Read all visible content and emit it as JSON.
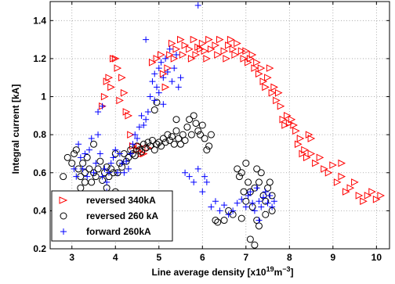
{
  "chart_data": {
    "type": "scatter",
    "xlabel_main": "Line average density [x10",
    "xlabel_exp": "19",
    "xlabel_unit_main": "m",
    "xlabel_unit_exp": "−3",
    "xlabel_close": "]",
    "ylabel": "Integral current [kA]",
    "xlim": [
      2.5,
      10.3
    ],
    "ylim": [
      0.2,
      1.5
    ],
    "xticks": [
      3,
      4,
      5,
      6,
      7,
      8,
      9,
      10
    ],
    "yticks": [
      0.2,
      0.4,
      0.6,
      0.8,
      1,
      1.2,
      1.4
    ],
    "grid": true,
    "legend_position": "bottom-left",
    "series": [
      {
        "name": "reversed 340kA",
        "marker": "triangle-right",
        "color": "#ff0000",
        "points": [
          [
            3.7,
            0.95
          ],
          [
            3.75,
            1.0
          ],
          [
            3.8,
            1.08
          ],
          [
            3.85,
            1.1
          ],
          [
            3.9,
            1.05
          ],
          [
            3.95,
            1.2
          ],
          [
            4.0,
            1.2
          ],
          [
            4.05,
            1.15
          ],
          [
            4.1,
            0.98
          ],
          [
            4.15,
            1.1
          ],
          [
            4.2,
            1.02
          ],
          [
            4.25,
            0.92
          ],
          [
            4.3,
            0.9
          ],
          [
            4.35,
            0.8
          ],
          [
            4.4,
            0.74
          ],
          [
            4.5,
            0.72
          ],
          [
            4.55,
            0.74
          ],
          [
            4.6,
            0.7
          ],
          [
            4.65,
            0.7
          ],
          [
            4.75,
            0.73
          ],
          [
            4.85,
            1.18
          ],
          [
            4.95,
            1.2
          ],
          [
            5.05,
            1.22
          ],
          [
            5.1,
            1.12
          ],
          [
            5.15,
            1.05
          ],
          [
            5.2,
            1.15
          ],
          [
            5.25,
            1.22
          ],
          [
            5.3,
            1.28
          ],
          [
            5.35,
            1.2
          ],
          [
            5.4,
            1.25
          ],
          [
            5.5,
            1.3
          ],
          [
            5.55,
            1.22
          ],
          [
            5.6,
            1.27
          ],
          [
            5.7,
            1.25
          ],
          [
            5.75,
            1.2
          ],
          [
            5.8,
            1.3
          ],
          [
            5.85,
            1.22
          ],
          [
            5.9,
            1.26
          ],
          [
            5.95,
            1.25
          ],
          [
            6.0,
            1.28
          ],
          [
            6.05,
            1.24
          ],
          [
            6.1,
            1.2
          ],
          [
            6.15,
            1.3
          ],
          [
            6.2,
            1.25
          ],
          [
            6.3,
            1.27
          ],
          [
            6.35,
            1.22
          ],
          [
            6.4,
            1.3
          ],
          [
            6.5,
            1.24
          ],
          [
            6.55,
            1.2
          ],
          [
            6.6,
            1.27
          ],
          [
            6.65,
            1.3
          ],
          [
            6.7,
            1.25
          ],
          [
            6.75,
            1.22
          ],
          [
            6.8,
            1.28
          ],
          [
            6.9,
            1.24
          ],
          [
            6.95,
            1.2
          ],
          [
            7.0,
            1.24
          ],
          [
            7.05,
            1.18
          ],
          [
            7.1,
            1.2
          ],
          [
            7.15,
            1.22
          ],
          [
            7.2,
            1.15
          ],
          [
            7.25,
            1.18
          ],
          [
            7.3,
            1.12
          ],
          [
            7.35,
            1.15
          ],
          [
            7.4,
            1.08
          ],
          [
            7.45,
            1.05
          ],
          [
            7.5,
            1.1
          ],
          [
            7.55,
            1.15
          ],
          [
            7.6,
            1.02
          ],
          [
            7.65,
            1.05
          ],
          [
            7.7,
            0.98
          ],
          [
            7.75,
            1.02
          ],
          [
            7.8,
            0.95
          ],
          [
            7.85,
            0.88
          ],
          [
            7.9,
            0.85
          ],
          [
            7.95,
            0.9
          ],
          [
            8.0,
            0.86
          ],
          [
            8.05,
            0.88
          ],
          [
            8.1,
            0.85
          ],
          [
            8.15,
            0.82
          ],
          [
            8.2,
            0.75
          ],
          [
            8.25,
            0.78
          ],
          [
            8.3,
            0.7
          ],
          [
            8.35,
            0.72
          ],
          [
            8.4,
            0.68
          ],
          [
            8.45,
            0.8
          ],
          [
            8.5,
            0.7
          ],
          [
            8.6,
            0.65
          ],
          [
            8.7,
            0.68
          ],
          [
            8.8,
            0.62
          ],
          [
            8.9,
            0.6
          ],
          [
            9.0,
            0.64
          ],
          [
            9.1,
            0.55
          ],
          [
            9.2,
            0.58
          ],
          [
            9.3,
            0.5
          ],
          [
            9.4,
            0.52
          ],
          [
            9.5,
            0.55
          ],
          [
            9.6,
            0.48
          ],
          [
            9.7,
            0.45
          ],
          [
            9.8,
            0.48
          ],
          [
            9.9,
            0.5
          ],
          [
            10.0,
            0.46
          ],
          [
            10.1,
            0.48
          ],
          [
            8.5,
            0.78
          ],
          [
            9.2,
            0.65
          ]
        ]
      },
      {
        "name": "reversed 260 kA",
        "marker": "circle",
        "color": "#000000",
        "points": [
          [
            2.8,
            0.58
          ],
          [
            2.9,
            0.68
          ],
          [
            3.0,
            0.65
          ],
          [
            3.05,
            0.7
          ],
          [
            3.1,
            0.72
          ],
          [
            3.15,
            0.62
          ],
          [
            3.2,
            0.58
          ],
          [
            3.25,
            0.65
          ],
          [
            3.3,
            0.6
          ],
          [
            3.35,
            0.68
          ],
          [
            3.4,
            0.62
          ],
          [
            3.45,
            0.55
          ],
          [
            3.5,
            0.6
          ],
          [
            3.55,
            0.58
          ],
          [
            3.6,
            0.62
          ],
          [
            3.65,
            0.66
          ],
          [
            3.7,
            0.56
          ],
          [
            3.75,
            0.6
          ],
          [
            3.8,
            0.63
          ],
          [
            3.85,
            0.58
          ],
          [
            3.9,
            0.62
          ],
          [
            3.95,
            0.6
          ],
          [
            4.0,
            0.7
          ],
          [
            4.05,
            0.6
          ],
          [
            4.1,
            0.65
          ],
          [
            4.15,
            0.63
          ],
          [
            4.2,
            0.7
          ],
          [
            4.25,
            0.66
          ],
          [
            4.3,
            0.68
          ],
          [
            4.35,
            0.72
          ],
          [
            4.4,
            0.7
          ],
          [
            4.45,
            0.69
          ],
          [
            4.5,
            0.74
          ],
          [
            4.55,
            0.72
          ],
          [
            4.6,
            0.71
          ],
          [
            4.65,
            0.75
          ],
          [
            4.7,
            0.73
          ],
          [
            4.75,
            0.76
          ],
          [
            4.8,
            0.74
          ],
          [
            4.85,
            0.77
          ],
          [
            4.9,
            0.72
          ],
          [
            4.95,
            0.75
          ],
          [
            5.0,
            0.76
          ],
          [
            5.05,
            0.74
          ],
          [
            5.1,
            0.78
          ],
          [
            5.15,
            0.76
          ],
          [
            5.2,
            0.8
          ],
          [
            5.25,
            0.77
          ],
          [
            5.3,
            0.79
          ],
          [
            5.35,
            0.75
          ],
          [
            5.4,
            0.82
          ],
          [
            5.45,
            0.78
          ],
          [
            5.5,
            0.75
          ],
          [
            5.55,
            0.8
          ],
          [
            5.6,
            0.77
          ],
          [
            5.65,
            0.84
          ],
          [
            5.7,
            0.88
          ],
          [
            5.75,
            0.8
          ],
          [
            5.8,
            0.9
          ],
          [
            5.85,
            0.86
          ],
          [
            5.9,
            0.82
          ],
          [
            5.95,
            0.8
          ],
          [
            6.0,
            0.85
          ],
          [
            6.05,
            0.78
          ],
          [
            6.1,
            0.72
          ],
          [
            6.15,
            0.74
          ],
          [
            4.95,
            0.97
          ],
          [
            4.9,
            0.93
          ],
          [
            5.4,
            0.88
          ],
          [
            6.2,
            0.8
          ],
          [
            3.5,
            0.75
          ],
          [
            3.3,
            0.55
          ],
          [
            3.2,
            0.52
          ],
          [
            4.2,
            0.48
          ],
          [
            4.0,
            0.5
          ],
          [
            3.8,
            0.52
          ],
          [
            6.8,
            0.62
          ],
          [
            6.85,
            0.58
          ],
          [
            6.9,
            0.6
          ],
          [
            6.95,
            0.5
          ],
          [
            7.0,
            0.45
          ],
          [
            7.05,
            0.55
          ],
          [
            7.1,
            0.5
          ],
          [
            7.15,
            0.42
          ],
          [
            7.2,
            0.52
          ],
          [
            7.25,
            0.62
          ],
          [
            7.3,
            0.55
          ],
          [
            7.35,
            0.6
          ],
          [
            7.4,
            0.48
          ],
          [
            7.45,
            0.45
          ],
          [
            7.5,
            0.52
          ],
          [
            7.55,
            0.55
          ],
          [
            7.6,
            0.48
          ],
          [
            6.3,
            0.35
          ],
          [
            6.35,
            0.34
          ],
          [
            6.6,
            0.4
          ],
          [
            6.7,
            0.38
          ],
          [
            7.1,
            0.25
          ],
          [
            7.2,
            0.22
          ],
          [
            7.3,
            0.32
          ],
          [
            6.5,
            0.35
          ],
          [
            6.9,
            0.36
          ],
          [
            7.25,
            0.35
          ],
          [
            7.45,
            0.38
          ],
          [
            7.6,
            0.4
          ],
          [
            7.0,
            0.65
          ]
        ]
      },
      {
        "name": "forward 260kA",
        "marker": "plus",
        "color": "#0000ff",
        "points": [
          [
            3.05,
            0.62
          ],
          [
            3.1,
            0.58
          ],
          [
            3.15,
            0.75
          ],
          [
            3.2,
            0.68
          ],
          [
            3.25,
            0.62
          ],
          [
            3.3,
            0.7
          ],
          [
            3.35,
            0.58
          ],
          [
            3.4,
            0.72
          ],
          [
            3.45,
            0.78
          ],
          [
            3.5,
            0.6
          ],
          [
            3.55,
            0.65
          ],
          [
            3.6,
            0.8
          ],
          [
            3.65,
            0.7
          ],
          [
            3.7,
            0.58
          ],
          [
            3.75,
            0.62
          ],
          [
            3.8,
            0.55
          ],
          [
            3.85,
            0.6
          ],
          [
            3.9,
            0.65
          ],
          [
            3.95,
            0.68
          ],
          [
            4.0,
            0.72
          ],
          [
            4.05,
            0.6
          ],
          [
            4.1,
            0.7
          ],
          [
            4.15,
            0.65
          ],
          [
            4.2,
            0.6
          ],
          [
            4.25,
            0.66
          ],
          [
            4.3,
            0.62
          ],
          [
            4.35,
            0.7
          ],
          [
            4.4,
            0.75
          ],
          [
            4.45,
            0.8
          ],
          [
            4.5,
            0.78
          ],
          [
            4.55,
            0.84
          ],
          [
            4.6,
            0.9
          ],
          [
            4.65,
            0.85
          ],
          [
            4.7,
            0.88
          ],
          [
            4.75,
            0.92
          ],
          [
            4.8,
            1.0
          ],
          [
            4.85,
            1.08
          ],
          [
            4.9,
            1.12
          ],
          [
            4.95,
            1.05
          ],
          [
            5.0,
            1.15
          ],
          [
            5.05,
            1.18
          ],
          [
            5.1,
            1.1
          ],
          [
            5.15,
            1.2
          ],
          [
            5.2,
            1.13
          ],
          [
            5.25,
            1.25
          ],
          [
            5.3,
            1.08
          ],
          [
            5.35,
            1.15
          ],
          [
            5.4,
            1.22
          ],
          [
            5.45,
            1.05
          ],
          [
            5.5,
            1.1
          ],
          [
            4.9,
            0.98
          ],
          [
            5.0,
            1.02
          ],
          [
            5.1,
            0.96
          ],
          [
            4.7,
            1.3
          ],
          [
            5.9,
            1.48
          ],
          [
            3.6,
            0.92
          ],
          [
            3.7,
            0.95
          ],
          [
            3.0,
            0.45
          ],
          [
            3.1,
            0.42
          ],
          [
            3.8,
            0.5
          ],
          [
            5.6,
            0.6
          ],
          [
            5.7,
            0.58
          ],
          [
            5.8,
            0.55
          ],
          [
            6.0,
            0.5
          ],
          [
            6.1,
            0.55
          ],
          [
            6.2,
            0.42
          ],
          [
            6.3,
            0.45
          ],
          [
            6.4,
            0.4
          ],
          [
            6.5,
            0.43
          ],
          [
            6.6,
            0.38
          ],
          [
            6.7,
            0.4
          ],
          [
            6.8,
            0.44
          ],
          [
            6.9,
            0.46
          ],
          [
            7.0,
            0.42
          ],
          [
            7.05,
            0.48
          ],
          [
            7.1,
            0.5
          ],
          [
            7.15,
            0.44
          ],
          [
            7.2,
            0.4
          ],
          [
            7.25,
            0.52
          ],
          [
            7.3,
            0.45
          ],
          [
            7.35,
            0.42
          ],
          [
            7.4,
            0.47
          ],
          [
            7.45,
            0.5
          ],
          [
            7.5,
            0.44
          ],
          [
            7.55,
            0.48
          ],
          [
            7.6,
            0.42
          ],
          [
            7.65,
            0.45
          ],
          [
            5.9,
            0.62
          ],
          [
            6.05,
            0.58
          ],
          [
            7.3,
            0.35
          ]
        ]
      }
    ]
  }
}
